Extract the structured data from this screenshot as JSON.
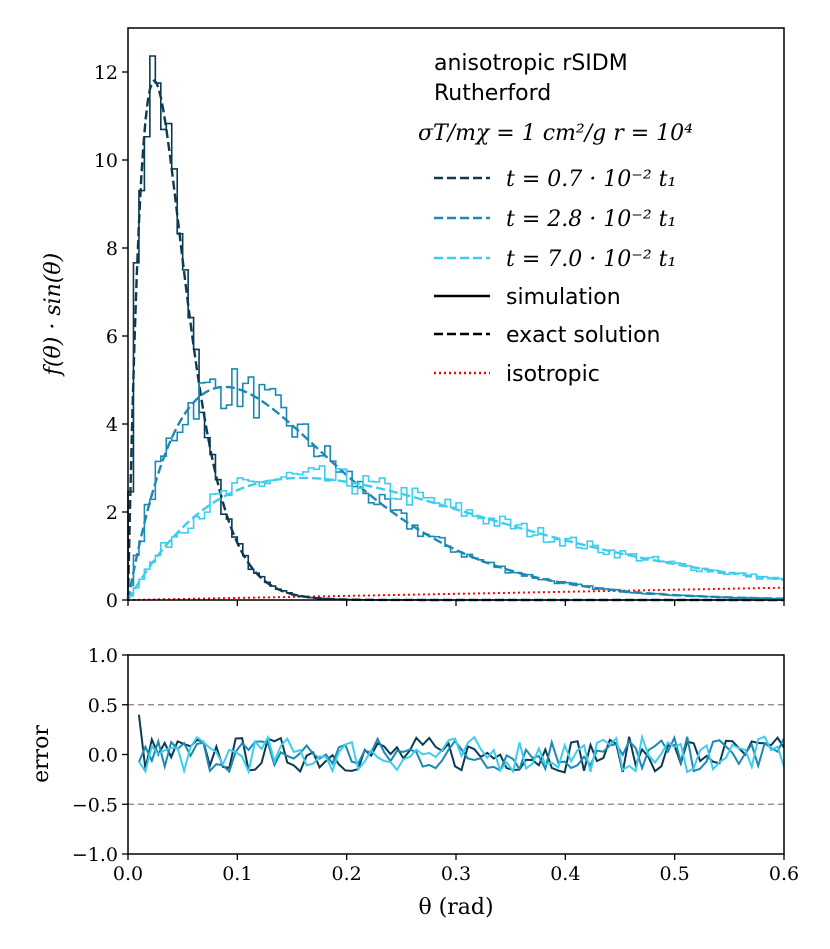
{
  "chart_data": [
    {
      "type": "line",
      "panel": "top",
      "xlabel": "",
      "ylabel": "f(θ) · sin(θ)",
      "xlim": [
        0,
        0.6
      ],
      "ylim": [
        0,
        13
      ],
      "xticks": [
        0.0,
        0.1,
        0.2,
        0.3,
        0.4,
        0.5,
        0.6
      ],
      "yticks": [
        0,
        2,
        4,
        6,
        8,
        10,
        12
      ],
      "ytick_labels": [
        "0",
        "2",
        "4",
        "6",
        "8",
        "10",
        "12"
      ],
      "legend": {
        "placement": "top-right",
        "title_lines": [
          "anisotropic rSIDM",
          "Rutherford"
        ],
        "param_line": "σT/mχ = 1 cm²/g    r = 10⁴",
        "series_labels": [
          "t = 0.7 · 10⁻² t₁",
          "t = 2.8 · 10⁻² t₁",
          "t = 7.0 · 10⁻² t₁"
        ],
        "style_labels": [
          "simulation",
          "exact solution",
          "isotropic"
        ]
      },
      "series": [
        {
          "name": "t = 0.7 · 10⁻² t₁",
          "color": "#0b3a52",
          "exact_peak": {
            "theta": 0.027,
            "value": 11.7
          },
          "exact_width": 0.027,
          "sim_noise": 0.12
        },
        {
          "name": "t = 2.8 · 10⁻² t₁",
          "color": "#1b89b1",
          "exact_peak": {
            "theta": 0.1,
            "value": 4.8
          },
          "exact_width": 0.1,
          "sim_noise": 0.12
        },
        {
          "name": "t = 7.0 · 10⁻² t₁",
          "color": "#3ccdef",
          "exact_peak": {
            "theta": 0.18,
            "value": 2.75
          },
          "exact_width": 0.18,
          "sim_noise": 0.12
        }
      ],
      "isotropic": {
        "color": "#ff0000",
        "theta": [
          0,
          0.6
        ],
        "value": [
          0,
          0.28
        ]
      }
    },
    {
      "type": "line",
      "panel": "bottom",
      "xlabel": "θ (rad)",
      "ylabel": "error",
      "xlim": [
        0,
        0.6
      ],
      "ylim": [
        -1.0,
        1.0
      ],
      "xticks": [
        0.0,
        0.1,
        0.2,
        0.3,
        0.4,
        0.5,
        0.6
      ],
      "xtick_labels": [
        "0.0",
        "0.1",
        "0.2",
        "0.3",
        "0.4",
        "0.5",
        "0.6"
      ],
      "yticks": [
        -1.0,
        -0.5,
        0.0,
        0.5,
        1.0
      ],
      "ytick_labels": [
        "−1.0",
        "−0.5",
        "0.0",
        "0.5",
        "1.0"
      ],
      "reference_lines": [
        0.5,
        -0.5
      ],
      "reference_color": "#808080",
      "error_range": [
        -0.3,
        0.4
      ],
      "series_colors": [
        "#0b3a52",
        "#1b89b1",
        "#3ccdef"
      ]
    }
  ]
}
